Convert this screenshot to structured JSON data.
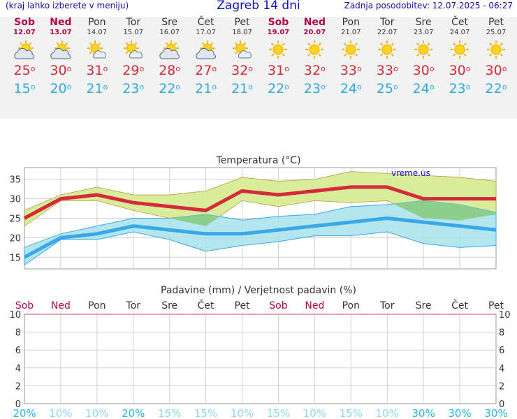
{
  "header": {
    "left_note": "(kraj lahko izberete v meniju)",
    "title": "Zagreb 14 dni",
    "updated": "Zadnja posodobitev: 12.07.2025 - 06:27"
  },
  "days": [
    {
      "name": "Sob",
      "date": "12.07",
      "weekend": true,
      "icon": "partly-cloudy-icon",
      "tmax": "25",
      "tmin": "15"
    },
    {
      "name": "Ned",
      "date": "13.07",
      "weekend": true,
      "icon": "partly-cloudy-icon",
      "tmax": "30",
      "tmin": "20"
    },
    {
      "name": "Pon",
      "date": "14.07",
      "weekend": false,
      "icon": "sun-cloud-icon",
      "tmax": "31",
      "tmin": "21"
    },
    {
      "name": "Tor",
      "date": "15.07",
      "weekend": false,
      "icon": "sun-cloud-icon",
      "tmax": "29",
      "tmin": "23"
    },
    {
      "name": "Sre",
      "date": "16.07",
      "weekend": false,
      "icon": "partly-cloudy-icon",
      "tmax": "28",
      "tmin": "22"
    },
    {
      "name": "Čet",
      "date": "17.07",
      "weekend": false,
      "icon": "partly-cloudy-icon",
      "tmax": "27",
      "tmin": "21"
    },
    {
      "name": "Pet",
      "date": "18.07",
      "weekend": false,
      "icon": "sun-cloud-icon",
      "tmax": "32",
      "tmin": "21"
    },
    {
      "name": "Sob",
      "date": "19.07",
      "weekend": true,
      "icon": "sun-icon",
      "tmax": "31",
      "tmin": "22"
    },
    {
      "name": "Ned",
      "date": "20.07",
      "weekend": true,
      "icon": "sun-icon",
      "tmax": "32",
      "tmin": "23"
    },
    {
      "name": "Pon",
      "date": "21.07",
      "weekend": false,
      "icon": "sun-icon",
      "tmax": "33",
      "tmin": "24"
    },
    {
      "name": "Tor",
      "date": "22.07",
      "weekend": false,
      "icon": "sun-icon",
      "tmax": "33",
      "tmin": "25"
    },
    {
      "name": "Sre",
      "date": "23.07",
      "weekend": false,
      "icon": "sun-icon",
      "tmax": "30",
      "tmin": "24"
    },
    {
      "name": "Čet",
      "date": "24.07",
      "weekend": false,
      "icon": "sun-icon",
      "tmax": "30",
      "tmin": "23"
    },
    {
      "name": "Pet",
      "date": "25.07",
      "weekend": false,
      "icon": "sun-icon",
      "tmax": "30",
      "tmin": "22"
    }
  ],
  "colors": {
    "max_line": "#d42a3a",
    "min_line": "#3aa8e8",
    "max_band": "#d8ec9a",
    "min_band": "#a6e2ec",
    "overlap": "#8cce8c",
    "weekend": "#b00048",
    "prob": "#52c6ec"
  },
  "chart_data": [
    {
      "type": "line",
      "title": "Temperatura (°C)",
      "watermark": "vreme.us",
      "categories": [
        "12.07",
        "13.07",
        "14.07",
        "15.07",
        "16.07",
        "17.07",
        "18.07",
        "19.07",
        "20.07",
        "21.07",
        "22.07",
        "23.07",
        "24.07",
        "25.07"
      ],
      "ylim": [
        12,
        38
      ],
      "yticks": [
        15,
        20,
        25,
        30,
        35
      ],
      "grid": true,
      "series": [
        {
          "values": [
            25,
            30,
            31,
            29,
            28,
            27,
            32,
            31,
            32,
            33,
            33,
            30,
            30,
            30
          ]
        },
        {
          "values": [
            15,
            20,
            21,
            23,
            22,
            21,
            21,
            22,
            23,
            24,
            25,
            24,
            23,
            22
          ]
        }
      ],
      "max_band": {
        "upper": [
          27,
          31,
          33,
          31,
          31,
          32,
          35.5,
          34.5,
          35,
          37,
          36.5,
          36,
          35.5,
          34.5
        ],
        "lower": [
          23,
          29.5,
          29.5,
          27,
          25,
          23,
          29.5,
          28,
          29.5,
          29,
          29.5,
          25,
          24.5,
          26
        ]
      },
      "min_band": {
        "upper": [
          17.5,
          21,
          23,
          25,
          25,
          26,
          24.5,
          25.5,
          26,
          28,
          28.5,
          29.5,
          28.5,
          26.5
        ],
        "lower": [
          13,
          19.5,
          19.5,
          21.5,
          19.5,
          16.5,
          18,
          19,
          20.5,
          20.5,
          21.5,
          18.5,
          17.5,
          18
        ]
      }
    },
    {
      "type": "bar",
      "title": "Padavine (mm) / Verjetnost padavin (%)",
      "day_labels": [
        "Sob",
        "Ned",
        "Pon",
        "Tor",
        "Sre",
        "Čet",
        "Pet",
        "Sob",
        "Ned",
        "Pon",
        "Tor",
        "Sre",
        "Čet",
        "Pet"
      ],
      "ylim": [
        0,
        10
      ],
      "yticks": [
        0,
        2,
        4,
        6,
        8,
        10
      ],
      "values": [
        0,
        0,
        0,
        0,
        0,
        0,
        0,
        0,
        0,
        0,
        0,
        0,
        0,
        0
      ],
      "probability": [
        "20%",
        "10%",
        "10%",
        "20%",
        "15%",
        "15%",
        "10%",
        "15%",
        "10%",
        "15%",
        "10%",
        "30%",
        "30%",
        "30%"
      ],
      "probability_values": [
        20,
        10,
        10,
        20,
        15,
        15,
        10,
        15,
        10,
        15,
        10,
        30,
        30,
        30
      ]
    }
  ]
}
